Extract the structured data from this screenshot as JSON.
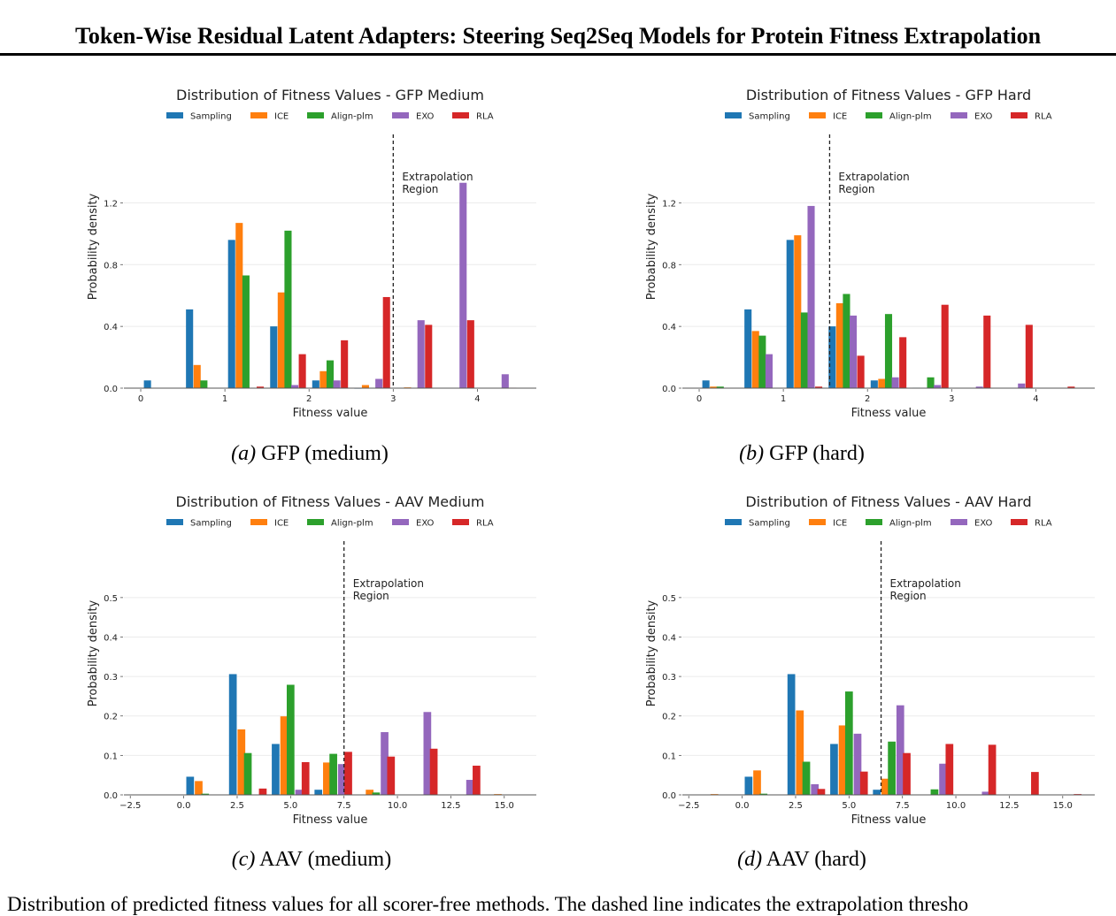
{
  "header": {
    "title": "Token-Wise Residual Latent Adapters: Steering Seq2Seq Models for Protein Fitness Extrapolation"
  },
  "captions": [
    {
      "label": "(a)",
      "text": "GFP (medium)"
    },
    {
      "label": "(b)",
      "text": "GFP (hard)"
    },
    {
      "label": "(c)",
      "text": "AAV (medium)"
    },
    {
      "label": "(d)",
      "text": "AAV (hard)"
    }
  ],
  "bottom_caption": "Distribution of predicted fitness values for all scorer-free methods. The dashed line indicates the extrapolation thresho",
  "colors": {
    "Sampling": "#1f77b4",
    "ICE": "#ff7f0e",
    "Align-plm": "#2ca02c",
    "EXO": "#9467bd",
    "RLA": "#d62728"
  },
  "chart_data": [
    {
      "type": "bar",
      "title": "Distribution of Fitness Values - GFP Medium",
      "xlabel": "Fitness value",
      "ylabel": "Probability density",
      "xlim": [
        -0.2,
        4.7
      ],
      "ylim": [
        0,
        1.38
      ],
      "xticks": [
        0,
        1,
        2,
        3,
        4
      ],
      "xtick_labels": [
        "0",
        "1",
        "2",
        "3",
        "4"
      ],
      "yticks": [
        0.0,
        0.4,
        0.8,
        1.2
      ],
      "ytick_labels": [
        "0.0",
        "0.4",
        "0.8",
        "1.2"
      ],
      "bar_width": 0.085,
      "grid": true,
      "legend": "top",
      "threshold": 3.0,
      "threshold_label": [
        "Extrapolation",
        "Region"
      ],
      "series": [
        {
          "name": "Sampling",
          "x": [
            0.08,
            0.58,
            1.08,
            1.58,
            2.08,
            2.58
          ],
          "values": [
            0.05,
            0.51,
            0.96,
            0.4,
            0.05,
            0.0
          ]
        },
        {
          "name": "ICE",
          "x": [
            0.67,
            1.17,
            1.67,
            2.17,
            2.67,
            3.17
          ],
          "values": [
            0.15,
            1.07,
            0.62,
            0.11,
            0.02,
            0.005
          ]
        },
        {
          "name": "Align-plm",
          "x": [
            0.75,
            1.25,
            1.75,
            2.25
          ],
          "values": [
            0.05,
            0.73,
            1.02,
            0.18
          ]
        },
        {
          "name": "EXO",
          "x": [
            1.83,
            2.33,
            2.83,
            3.33,
            3.83,
            4.33
          ],
          "values": [
            0.02,
            0.05,
            0.06,
            0.44,
            1.33,
            0.09
          ]
        },
        {
          "name": "RLA",
          "x": [
            1.42,
            1.92,
            2.42,
            2.92,
            3.42,
            3.92,
            4.42
          ],
          "values": [
            0.01,
            0.22,
            0.31,
            0.59,
            0.41,
            0.44,
            0.003
          ]
        }
      ]
    },
    {
      "type": "bar",
      "title": "Distribution of Fitness Values - GFP Hard",
      "xlabel": "Fitness value",
      "ylabel": "Probability density",
      "xlim": [
        -0.2,
        4.7
      ],
      "ylim": [
        0,
        1.38
      ],
      "xticks": [
        0,
        1,
        2,
        3,
        4
      ],
      "xtick_labels": [
        "0",
        "1",
        "2",
        "3",
        "4"
      ],
      "yticks": [
        0.0,
        0.4,
        0.8,
        1.2
      ],
      "ytick_labels": [
        "0.0",
        "0.4",
        "0.8",
        "1.2"
      ],
      "bar_width": 0.085,
      "grid": true,
      "legend": "top",
      "threshold": 1.55,
      "threshold_label": [
        "Extrapolation",
        "Region"
      ],
      "series": [
        {
          "name": "Sampling",
          "x": [
            0.08,
            0.58,
            1.08,
            1.58,
            2.08,
            2.58
          ],
          "values": [
            0.05,
            0.51,
            0.96,
            0.4,
            0.05,
            0.003
          ]
        },
        {
          "name": "ICE",
          "x": [
            0.17,
            0.67,
            1.17,
            1.67,
            2.17
          ],
          "values": [
            0.01,
            0.37,
            0.99,
            0.55,
            0.06
          ]
        },
        {
          "name": "Align-plm",
          "x": [
            0.25,
            0.75,
            1.25,
            1.75,
            2.25,
            2.75
          ],
          "values": [
            0.01,
            0.34,
            0.49,
            0.61,
            0.48,
            0.07
          ]
        },
        {
          "name": "EXO",
          "x": [
            0.83,
            1.33,
            1.83,
            2.33,
            2.83,
            3.33,
            3.83
          ],
          "values": [
            0.22,
            1.18,
            0.47,
            0.07,
            0.02,
            0.01,
            0.03
          ]
        },
        {
          "name": "RLA",
          "x": [
            1.42,
            1.92,
            2.42,
            2.92,
            3.42,
            3.92,
            4.42
          ],
          "values": [
            0.01,
            0.21,
            0.33,
            0.54,
            0.47,
            0.41,
            0.01
          ]
        }
      ]
    },
    {
      "type": "bar",
      "title": "Distribution of Fitness Values - AAV Medium",
      "xlabel": "Fitness value",
      "ylabel": "Probability density",
      "xlim": [
        -2.8,
        16.5
      ],
      "ylim": [
        0,
        0.54
      ],
      "xticks": [
        -2.5,
        0,
        2.5,
        5,
        7.5,
        10,
        12.5,
        15
      ],
      "xtick_labels": [
        "−2.5",
        "0.0",
        "2.5",
        "5.0",
        "7.5",
        "10.0",
        "12.5",
        "15.0"
      ],
      "yticks": [
        0.0,
        0.1,
        0.2,
        0.3,
        0.4,
        0.5
      ],
      "ytick_labels": [
        "0.0",
        "0.1",
        "0.2",
        "0.3",
        "0.4",
        "0.5"
      ],
      "bar_width": 0.36,
      "grid": true,
      "legend": "top",
      "threshold": 7.5,
      "threshold_label": [
        "Extrapolation",
        "Region"
      ],
      "series": [
        {
          "name": "Sampling",
          "x": [
            0.3,
            2.3,
            4.3,
            6.3
          ],
          "values": [
            0.046,
            0.306,
            0.129,
            0.013
          ]
        },
        {
          "name": "ICE",
          "x": [
            0.7,
            2.7,
            4.7,
            6.7,
            8.7,
            14.7
          ],
          "values": [
            0.035,
            0.166,
            0.199,
            0.082,
            0.013,
            0.002
          ]
        },
        {
          "name": "Align-plm",
          "x": [
            1.0,
            3.0,
            5.0,
            7.0,
            9.0
          ],
          "values": [
            0.003,
            0.106,
            0.279,
            0.104,
            0.006
          ]
        },
        {
          "name": "EXO",
          "x": [
            5.4,
            7.4,
            9.4,
            11.4,
            13.4
          ],
          "values": [
            0.013,
            0.078,
            0.159,
            0.21,
            0.038
          ]
        },
        {
          "name": "RLA",
          "x": [
            3.7,
            5.7,
            7.7,
            9.7,
            11.7,
            13.7
          ],
          "values": [
            0.016,
            0.083,
            0.109,
            0.097,
            0.117,
            0.074
          ]
        }
      ]
    },
    {
      "type": "bar",
      "title": "Distribution of Fitness Values - AAV Hard",
      "xlabel": "Fitness value",
      "ylabel": "Probability density",
      "xlim": [
        -2.8,
        16.5
      ],
      "ylim": [
        0,
        0.54
      ],
      "xticks": [
        -2.5,
        0,
        2.5,
        5,
        7.5,
        10,
        12.5,
        15
      ],
      "xtick_labels": [
        "−2.5",
        "0.0",
        "2.5",
        "5.0",
        "7.5",
        "10.0",
        "12.5",
        "15.0"
      ],
      "yticks": [
        0.0,
        0.1,
        0.2,
        0.3,
        0.4,
        0.5
      ],
      "ytick_labels": [
        "0.0",
        "0.1",
        "0.2",
        "0.3",
        "0.4",
        "0.5"
      ],
      "bar_width": 0.36,
      "grid": true,
      "legend": "top",
      "threshold": 6.5,
      "threshold_label": [
        "Extrapolation",
        "Region"
      ],
      "series": [
        {
          "name": "Sampling",
          "x": [
            0.3,
            2.3,
            4.3,
            6.3
          ],
          "values": [
            0.046,
            0.306,
            0.129,
            0.013
          ]
        },
        {
          "name": "ICE",
          "x": [
            -1.3,
            0.7,
            2.7,
            4.7,
            6.7
          ],
          "values": [
            0.002,
            0.062,
            0.214,
            0.176,
            0.041
          ]
        },
        {
          "name": "Align-plm",
          "x": [
            1.0,
            3.0,
            5.0,
            7.0,
            9.0
          ],
          "values": [
            0.003,
            0.084,
            0.262,
            0.135,
            0.014
          ]
        },
        {
          "name": "EXO",
          "x": [
            3.4,
            5.4,
            7.4,
            9.4,
            11.4
          ],
          "values": [
            0.027,
            0.155,
            0.227,
            0.079,
            0.008
          ]
        },
        {
          "name": "RLA",
          "x": [
            3.7,
            5.7,
            7.7,
            9.7,
            11.7,
            13.7,
            15.7
          ],
          "values": [
            0.015,
            0.059,
            0.106,
            0.129,
            0.127,
            0.058,
            0.002
          ]
        }
      ]
    }
  ]
}
